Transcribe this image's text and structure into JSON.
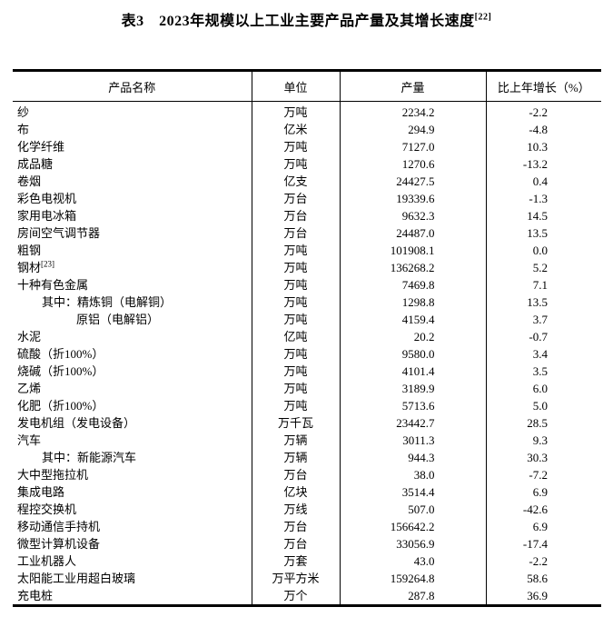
{
  "title": {
    "text": "表3　2023年规模以上工业主要产品产量及其增长速度",
    "sup": "[22]"
  },
  "table": {
    "headers": {
      "product": "产品名称",
      "unit": "单位",
      "output": "产量",
      "growth": "比上年增长（%）"
    },
    "rows": [
      {
        "name": "纱",
        "indent": 0,
        "unit": "万吨",
        "output": "2234.2",
        "growth": "-2.2"
      },
      {
        "name": "布",
        "indent": 0,
        "unit": "亿米",
        "output": "294.9",
        "growth": "-4.8"
      },
      {
        "name": "化学纤维",
        "indent": 0,
        "unit": "万吨",
        "output": "7127.0",
        "growth": "10.3"
      },
      {
        "name": "成品糖",
        "indent": 0,
        "unit": "万吨",
        "output": "1270.6",
        "growth": "-13.2"
      },
      {
        "name": "卷烟",
        "indent": 0,
        "unit": "亿支",
        "output": "24427.5",
        "growth": "0.4"
      },
      {
        "name": "彩色电视机",
        "indent": 0,
        "unit": "万台",
        "output": "19339.6",
        "growth": "-1.3"
      },
      {
        "name": "家用电冰箱",
        "indent": 0,
        "unit": "万台",
        "output": "9632.3",
        "growth": "14.5"
      },
      {
        "name": "房间空气调节器",
        "indent": 0,
        "unit": "万台",
        "output": "24487.0",
        "growth": "13.5"
      },
      {
        "name": "粗钢",
        "indent": 0,
        "unit": "万吨",
        "output": "101908.1",
        "growth": "0.0"
      },
      {
        "name": "钢材",
        "sup": "[23]",
        "indent": 0,
        "unit": "万吨",
        "output": "136268.2",
        "growth": "5.2"
      },
      {
        "name": "十种有色金属",
        "indent": 0,
        "unit": "万吨",
        "output": "7469.8",
        "growth": "7.1"
      },
      {
        "name": "其中：精炼铜（电解铜）",
        "indent": 1,
        "unit": "万吨",
        "output": "1298.8",
        "growth": "13.5"
      },
      {
        "name": "原铝（电解铝）",
        "indent": 2,
        "unit": "万吨",
        "output": "4159.4",
        "growth": "3.7"
      },
      {
        "name": "水泥",
        "indent": 0,
        "unit": "亿吨",
        "output": "20.2",
        "growth": "-0.7"
      },
      {
        "name": "硫酸（折100%）",
        "indent": 0,
        "unit": "万吨",
        "output": "9580.0",
        "growth": "3.4"
      },
      {
        "name": "烧碱（折100%）",
        "indent": 0,
        "unit": "万吨",
        "output": "4101.4",
        "growth": "3.5"
      },
      {
        "name": "乙烯",
        "indent": 0,
        "unit": "万吨",
        "output": "3189.9",
        "growth": "6.0"
      },
      {
        "name": "化肥（折100%）",
        "indent": 0,
        "unit": "万吨",
        "output": "5713.6",
        "growth": "5.0"
      },
      {
        "name": "发电机组（发电设备）",
        "indent": 0,
        "unit": "万千瓦",
        "output": "23442.7",
        "growth": "28.5"
      },
      {
        "name": "汽车",
        "indent": 0,
        "unit": "万辆",
        "output": "3011.3",
        "growth": "9.3"
      },
      {
        "name": "其中：新能源汽车",
        "indent": 1,
        "unit": "万辆",
        "output": "944.3",
        "growth": "30.3"
      },
      {
        "name": "大中型拖拉机",
        "indent": 0,
        "unit": "万台",
        "output": "38.0",
        "growth": "-7.2"
      },
      {
        "name": "集成电路",
        "indent": 0,
        "unit": "亿块",
        "output": "3514.4",
        "growth": "6.9"
      },
      {
        "name": "程控交换机",
        "indent": 0,
        "unit": "万线",
        "output": "507.0",
        "growth": "-42.6"
      },
      {
        "name": "移动通信手持机",
        "indent": 0,
        "unit": "万台",
        "output": "156642.2",
        "growth": "6.9"
      },
      {
        "name": "微型计算机设备",
        "indent": 0,
        "unit": "万台",
        "output": "33056.9",
        "growth": "-17.4"
      },
      {
        "name": "工业机器人",
        "indent": 0,
        "unit": "万套",
        "output": "43.0",
        "growth": "-2.2"
      },
      {
        "name": "太阳能工业用超白玻璃",
        "indent": 0,
        "unit": "万平方米",
        "output": "159264.8",
        "growth": "58.6"
      },
      {
        "name": "充电桩",
        "indent": 0,
        "unit": "万个",
        "output": "287.8",
        "growth": "36.9"
      }
    ]
  }
}
